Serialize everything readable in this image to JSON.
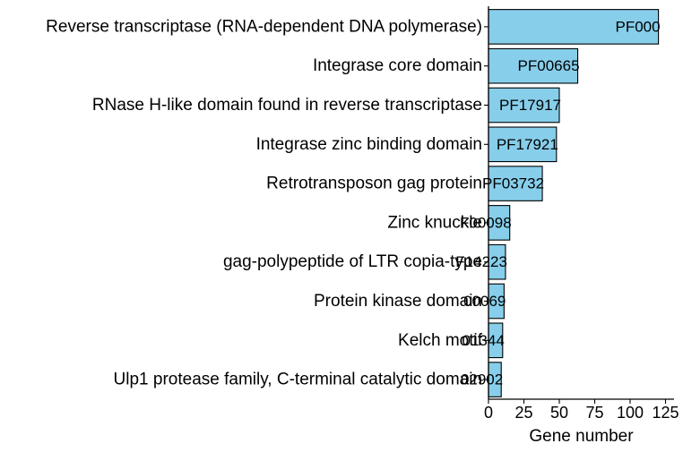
{
  "chart_data": {
    "type": "bar",
    "orientation": "horizontal",
    "categories": [
      "Reverse transcriptase (RNA-dependent DNA polymerase)",
      "Integrase core domain",
      "RNase H-like domain found in reverse transcriptase",
      "Integrase zinc binding domain",
      "Retrotransposon gag protein",
      "Zinc knuckle",
      "gag-polypeptide of LTR copia-type",
      "Protein kinase domain",
      "Kelch motif",
      "Ulp1 protease family, C-terminal catalytic domain"
    ],
    "values": [
      120,
      63,
      50,
      48,
      38,
      15,
      12,
      11,
      10,
      9
    ],
    "bar_labels": [
      "PF000",
      "PF00665",
      "PF17917",
      "PF17921",
      "PF03732",
      "F00098",
      "F14223",
      "00069",
      "01344",
      "02902"
    ],
    "xlabel": "Gene number",
    "ylabel": "",
    "xlim": [
      0,
      131
    ],
    "xticks": [
      0,
      25,
      50,
      75,
      100,
      125
    ],
    "xtick_labels": [
      "0",
      "25",
      "50",
      "75",
      "100",
      "125"
    ],
    "grid": false,
    "colors": {
      "bar_fill": "#87CEEB",
      "bar_stroke": "#000000",
      "axis": "#000000"
    }
  }
}
